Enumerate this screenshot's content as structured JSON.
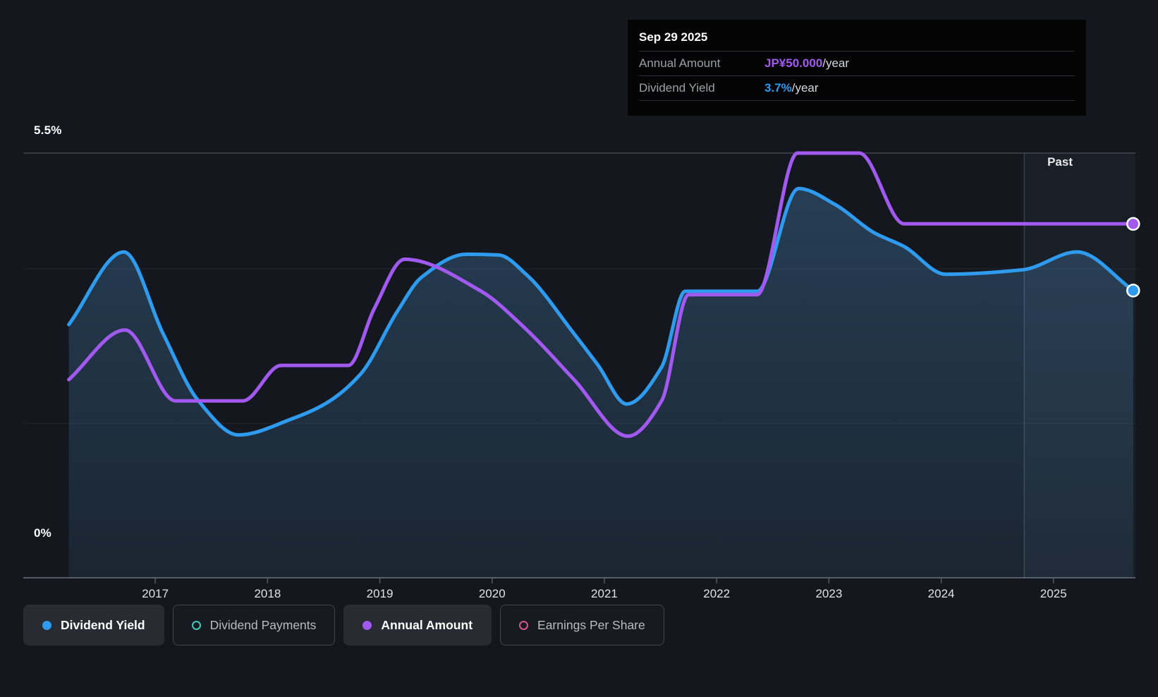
{
  "colors": {
    "yield_blue": "#2e9bef",
    "amount_purple": "#a259f0",
    "payments_teal": "#43c8b7",
    "eps_pink": "#d8548e",
    "background": "#14181e",
    "tooltip_bg": "#040404"
  },
  "tooltip": {
    "date": "Sep 29 2025",
    "rows": [
      {
        "label": "Annual Amount",
        "value": "JP¥50.000",
        "suffix": "/year",
        "value_color": "#a259f0"
      },
      {
        "label": "Dividend Yield",
        "value": "3.7%",
        "suffix": "/year",
        "value_color": "#2e9bef"
      }
    ]
  },
  "y_axis": {
    "top_label": "5.5%",
    "bottom_label": "0%"
  },
  "past_label": "Past",
  "legend": [
    {
      "label": "Dividend Yield",
      "color": "#2e9bef",
      "style": "filled",
      "active": true
    },
    {
      "label": "Dividend Payments",
      "color": "#43c8b7",
      "style": "ring",
      "active": false
    },
    {
      "label": "Annual Amount",
      "color": "#a259f0",
      "style": "filled",
      "active": true
    },
    {
      "label": "Earnings Per Share",
      "color": "#d8548e",
      "style": "ring",
      "active": false
    }
  ],
  "chart_data": {
    "type": "line",
    "x_axis": {
      "range": [
        2016.22,
        2025.73
      ],
      "ticks": [
        2017,
        2018,
        2019,
        2020,
        2021,
        2022,
        2023,
        2024,
        2025
      ],
      "labels": [
        "2017",
        "2018",
        "2019",
        "2020",
        "2021",
        "2022",
        "2023",
        "2024",
        "2025"
      ]
    },
    "y_axes": [
      {
        "id": "yield",
        "label": "Dividend Yield",
        "unit": "%",
        "range": [
          0,
          5.5
        ],
        "gridlines": [
          5.5,
          4,
          2,
          0
        ]
      },
      {
        "id": "amount",
        "label": "Annual Amount",
        "unit": "JP¥/year",
        "range": [
          0,
          60
        ]
      }
    ],
    "past_divider_x": 2024.74,
    "series": [
      {
        "name": "Dividend Yield",
        "axis": "yield",
        "color": "#2e9bef",
        "area": true,
        "end_value_label": "3.7%",
        "points": [
          [
            2016.23,
            3.28
          ],
          [
            2016.72,
            4.22
          ],
          [
            2017.07,
            3.16
          ],
          [
            2017.38,
            2.3
          ],
          [
            2017.74,
            1.85
          ],
          [
            2018.22,
            2.06
          ],
          [
            2018.51,
            2.25
          ],
          [
            2018.83,
            2.64
          ],
          [
            2019.16,
            3.46
          ],
          [
            2019.37,
            3.89
          ],
          [
            2019.77,
            4.19
          ],
          [
            2020.06,
            4.18
          ],
          [
            2020.31,
            3.92
          ],
          [
            2020.73,
            3.16
          ],
          [
            2020.94,
            2.76
          ],
          [
            2021.2,
            2.25
          ],
          [
            2021.51,
            2.73
          ],
          [
            2021.72,
            3.71
          ],
          [
            2022.36,
            3.71
          ],
          [
            2022.73,
            5.04
          ],
          [
            2023.06,
            4.83
          ],
          [
            2023.4,
            4.47
          ],
          [
            2023.67,
            4.29
          ],
          [
            2024.04,
            3.93
          ],
          [
            2024.73,
            3.99
          ],
          [
            2025.21,
            4.22
          ],
          [
            2025.71,
            3.72
          ]
        ]
      },
      {
        "name": "Annual Amount",
        "axis": "amount",
        "color": "#a259f0",
        "area": false,
        "end_value_label": "JP¥50.000",
        "points": [
          [
            2016.23,
            28
          ],
          [
            2016.73,
            35
          ],
          [
            2017.18,
            25
          ],
          [
            2017.78,
            25
          ],
          [
            2018.12,
            30
          ],
          [
            2018.72,
            30
          ],
          [
            2018.95,
            38
          ],
          [
            2019.22,
            45
          ],
          [
            2019.9,
            40.5
          ],
          [
            2020.31,
            35
          ],
          [
            2020.73,
            28
          ],
          [
            2021.21,
            20
          ],
          [
            2021.51,
            25
          ],
          [
            2021.75,
            40
          ],
          [
            2022.36,
            40
          ],
          [
            2022.72,
            60
          ],
          [
            2023.27,
            60
          ],
          [
            2023.67,
            50
          ],
          [
            2025.71,
            50
          ]
        ]
      }
    ]
  }
}
